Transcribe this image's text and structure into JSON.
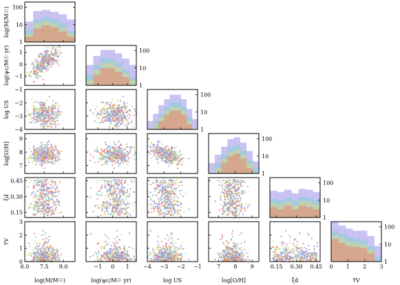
{
  "chart_data": {
    "type": "scatter",
    "title": "",
    "variables": [
      {
        "key": "mass",
        "label": "log(M/M☉)",
        "range": [
          6.0,
          9.9
        ],
        "ticks": [
          6.0,
          7.5,
          9.0
        ],
        "tick_labels": [
          "6.0",
          "7.5",
          "9.0"
        ]
      },
      {
        "key": "sfr",
        "label": "log(ψc/M☉ yr)",
        "range": [
          -1.8,
          1.6
        ],
        "ticks": [
          -1,
          0,
          1
        ],
        "tick_labels": [
          "−1",
          "0",
          "1"
        ]
      },
      {
        "key": "logU",
        "label": "log US",
        "range": [
          -4.0,
          -1.0
        ],
        "ticks": [
          -4,
          -3,
          -2,
          -1
        ],
        "tick_labels": [
          "−4",
          "−3",
          "−2",
          "−1"
        ]
      },
      {
        "key": "OH",
        "label": "log[O/H]",
        "range": [
          6.4,
          9.4
        ],
        "ticks": [
          7,
          8,
          9
        ],
        "tick_labels": [
          "7",
          "8",
          "9"
        ]
      },
      {
        "key": "xi",
        "label": "ξd",
        "range": [
          0.1,
          0.48
        ],
        "ticks": [
          0.15,
          0.3,
          0.45
        ],
        "tick_labels": [
          "0.15",
          "0.30",
          "0.45"
        ]
      },
      {
        "key": "tau",
        "label": "τ̂V",
        "range": [
          0.0,
          3.0
        ],
        "ticks": [
          0,
          1,
          2,
          3
        ],
        "tick_labels": [
          "0",
          "1",
          "2",
          "3"
        ]
      }
    ],
    "diag_log_ticks": [
      1,
      10,
      100
    ],
    "diag_log_tick_labels": [
      "1",
      "10",
      "100"
    ],
    "diag_ylim": [
      1,
      200
    ],
    "series": [
      {
        "color": "#9b91e8",
        "hist": {
          "mass": [
            15,
            60,
            70,
            55,
            40,
            20
          ],
          "sfr": [
            15,
            50,
            110,
            110,
            70,
            35,
            15
          ],
          "logU": [
            3,
            8,
            25,
            55,
            100,
            100,
            55,
            15,
            4
          ],
          "OH": [
            4,
            12,
            35,
            95,
            120,
            60,
            20,
            5
          ],
          "xi": [
            35,
            30,
            40,
            25,
            45,
            40,
            30
          ],
          "tau": [
            200,
            120,
            80,
            60,
            60,
            30,
            8
          ]
        }
      },
      {
        "color": "#86cdd6",
        "hist": {
          "mass": [
            5,
            20,
            28,
            20,
            12,
            4
          ],
          "sfr": [
            4,
            15,
            35,
            35,
            20,
            8,
            3
          ],
          "logU": [
            1,
            3,
            8,
            20,
            35,
            35,
            20,
            5,
            1
          ],
          "OH": [
            1,
            4,
            12,
            30,
            40,
            20,
            6,
            2
          ],
          "xi": [
            12,
            10,
            14,
            9,
            15,
            13,
            10
          ],
          "tau": [
            60,
            40,
            25,
            20,
            18,
            8,
            2
          ]
        }
      },
      {
        "color": "#d3d98a",
        "hist": {
          "mass": [
            3,
            12,
            16,
            12,
            7,
            3
          ],
          "sfr": [
            2,
            8,
            20,
            20,
            12,
            5,
            2
          ],
          "logU": [
            1,
            2,
            5,
            12,
            20,
            20,
            12,
            3,
            1
          ],
          "OH": [
            1,
            2,
            7,
            18,
            24,
            12,
            4,
            1
          ],
          "xi": [
            7,
            6,
            8,
            5,
            9,
            8,
            6
          ],
          "tau": [
            35,
            22,
            14,
            12,
            10,
            5,
            1
          ]
        }
      },
      {
        "color": "#e8836f",
        "hist": {
          "mass": [
            2,
            6,
            9,
            7,
            4,
            2
          ],
          "sfr": [
            1,
            4,
            10,
            10,
            6,
            3,
            1
          ],
          "logU": [
            1,
            1,
            3,
            7,
            12,
            12,
            7,
            2,
            1
          ],
          "OH": [
            1,
            1,
            4,
            10,
            14,
            7,
            2,
            1
          ],
          "xi": [
            4,
            3,
            5,
            3,
            5,
            4,
            3
          ],
          "tau": [
            20,
            12,
            8,
            7,
            6,
            3,
            1
          ]
        }
      }
    ]
  }
}
